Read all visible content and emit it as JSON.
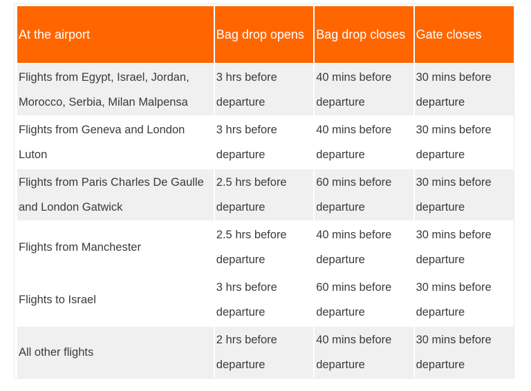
{
  "table": {
    "header_color": "#ff6600",
    "shade_color": "#f0f0f0",
    "columns": [
      "At the airport",
      "Bag drop opens",
      "Bag drop closes",
      "Gate closes"
    ],
    "rows": [
      {
        "location": "Flights from Egypt, Israel, Jordan, Morocco, Serbia, Milan Malpensa",
        "bag_drop_opens": "3 hrs before departure",
        "bag_drop_closes": "40 mins before departure",
        "gate_closes": "30 mins before departure",
        "shaded": true
      },
      {
        "location": "Flights from Geneva and London Luton",
        "bag_drop_opens": "3 hrs before departure",
        "bag_drop_closes": "40 mins before departure",
        "gate_closes": "30 mins before departure",
        "shaded": false
      },
      {
        "location": "Flights from Paris Charles De Gaulle and London Gatwick",
        "bag_drop_opens": "2.5 hrs before departure",
        "bag_drop_closes": "60 mins before departure",
        "gate_closes": "30 mins before departure",
        "shaded": true
      },
      {
        "location": "Flights from Manchester",
        "bag_drop_opens": "2.5 hrs before departure",
        "bag_drop_closes": "40 mins before departure",
        "gate_closes": "30 mins before departure",
        "shaded": false
      },
      {
        "location": "Flights to Israel",
        "bag_drop_opens": "3 hrs before departure",
        "bag_drop_closes": "60 mins before departure",
        "gate_closes": "30 mins before departure",
        "shaded": false
      },
      {
        "location": "All other flights",
        "bag_drop_opens": "2 hrs before departure",
        "bag_drop_closes": "40 mins before departure",
        "gate_closes": "30 mins before departure",
        "shaded": true
      }
    ]
  }
}
